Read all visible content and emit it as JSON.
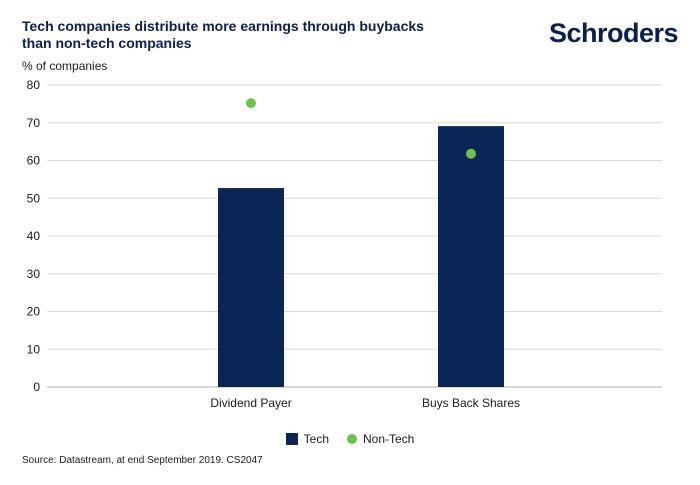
{
  "header": {
    "title": "Tech companies distribute more earnings through buybacks than non-tech companies",
    "logo_text": "Schroders"
  },
  "footer": {
    "source": "Source: Datastream, at end September 2019. CS2047"
  },
  "colors": {
    "tech": "#0b2557",
    "non_tech": "#6cc24a",
    "grid": "#d9d9d9",
    "brand": "#0b1f4d"
  },
  "chart_data": {
    "type": "bar",
    "ylabel": "% of companies",
    "ylim": [
      0,
      80
    ],
    "yticks": [
      0,
      10,
      20,
      30,
      40,
      50,
      60,
      70,
      80
    ],
    "categories": [
      "Dividend Payer",
      "Buys Back Shares"
    ],
    "series": [
      {
        "name": "Tech",
        "kind": "bar",
        "values": [
          52.7,
          69.1
        ]
      },
      {
        "name": "Non-Tech",
        "kind": "dot",
        "values": [
          75.2,
          61.8
        ]
      }
    ],
    "grid": true,
    "legend_position": "bottom-center"
  }
}
